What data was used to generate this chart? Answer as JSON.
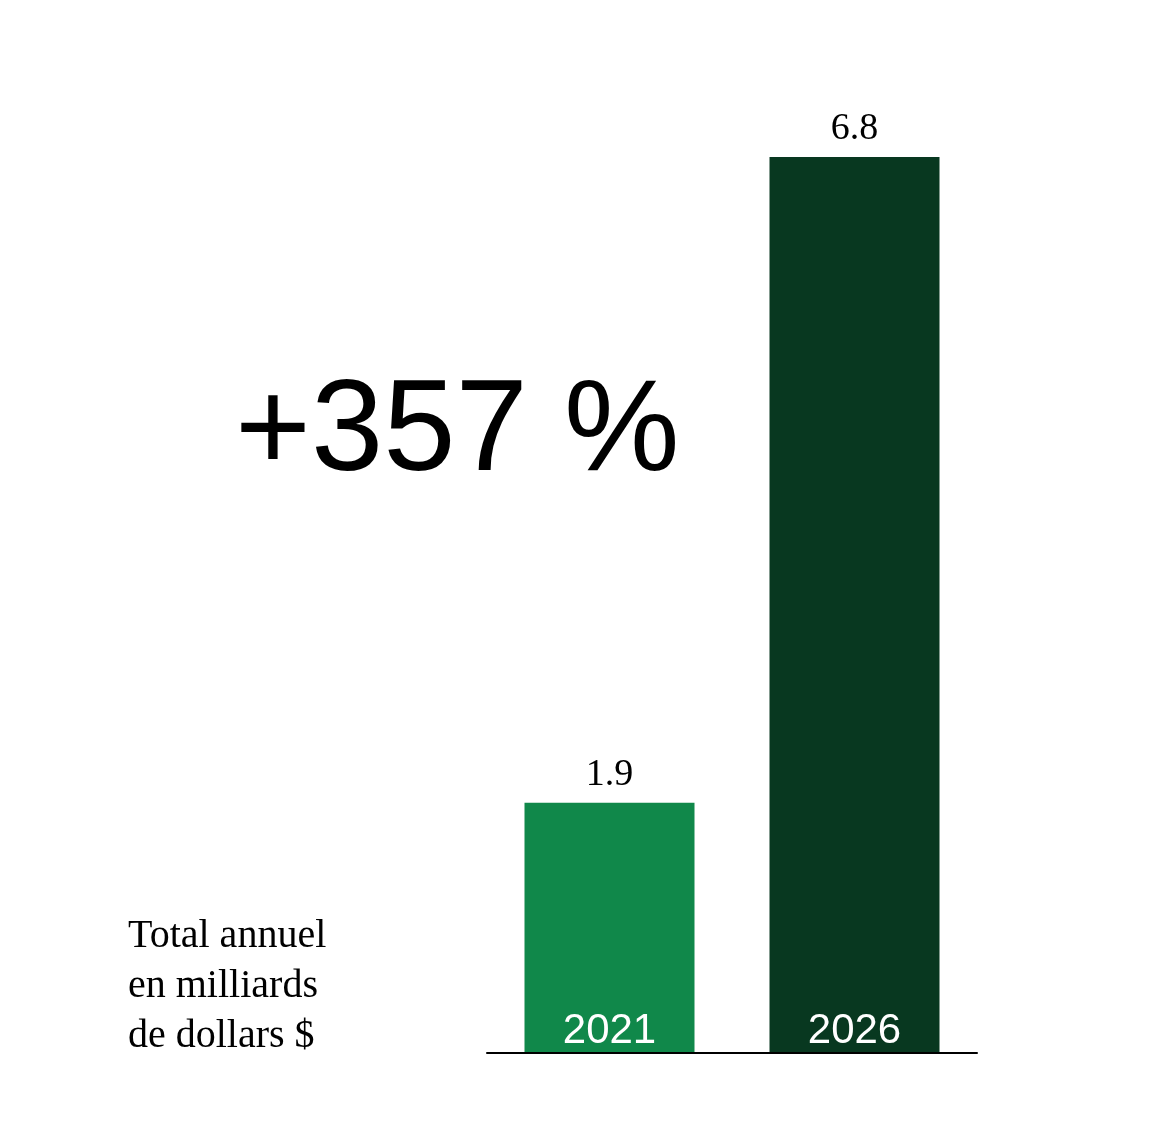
{
  "chart_data": {
    "type": "bar",
    "categories": [
      "2021",
      "2026"
    ],
    "values": [
      1.9,
      6.8
    ],
    "colors": [
      "#10884a",
      "#083820"
    ],
    "data_labels": true,
    "ylabel": "Total annuel en milliards de dollars $",
    "annotations": [
      "+357 %"
    ]
  }
}
